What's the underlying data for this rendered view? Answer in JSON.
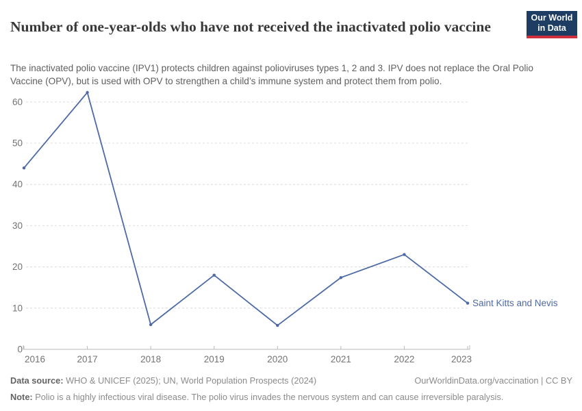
{
  "header": {
    "title": "Number of one-year-olds who have not received the inactivated polio vaccine",
    "subtitle": "The inactivated polio vaccine (IPV1) protects children against polioviruses types 1, 2 and 3. IPV does not replace the Oral Polio Vaccine (OPV), but is used with OPV to strengthen a child’s immune system and protect them from polio.",
    "logo": {
      "line1": "Our World",
      "line2": "in Data"
    }
  },
  "chart_data": {
    "type": "line",
    "title": "Number of one-year-olds who have not received the inactivated polio vaccine",
    "x": [
      2016,
      2017,
      2018,
      2019,
      2020,
      2021,
      2022,
      2023
    ],
    "series": [
      {
        "name": "Saint Kitts and Nevis",
        "values": [
          44,
          62.3,
          6,
          18,
          5.8,
          17.4,
          23,
          11.2
        ]
      }
    ],
    "entity_label": "Saint Kitts and Nevis",
    "ylim": [
      0,
      62.3
    ],
    "yticks": [
      0,
      10,
      20,
      30,
      40,
      50,
      60
    ],
    "grid": "horizontal-dashed",
    "legend_position": "end-of-line",
    "colors": {
      "line": "#4d6aa5",
      "grid": "#dcdcdc",
      "axis": "#b9b9b9",
      "tick_text": "#737373"
    }
  },
  "footer": {
    "source_label": "Data source:",
    "source_text": " WHO & UNICEF (2025); UN, World Population Prospects (2024)",
    "license_text": "OurWorldinData.org/vaccination | CC BY",
    "note_label": "Note:",
    "note_text": " Polio is a highly infectious viral disease. The polio virus invades the nervous system and can cause irreversible paralysis."
  }
}
